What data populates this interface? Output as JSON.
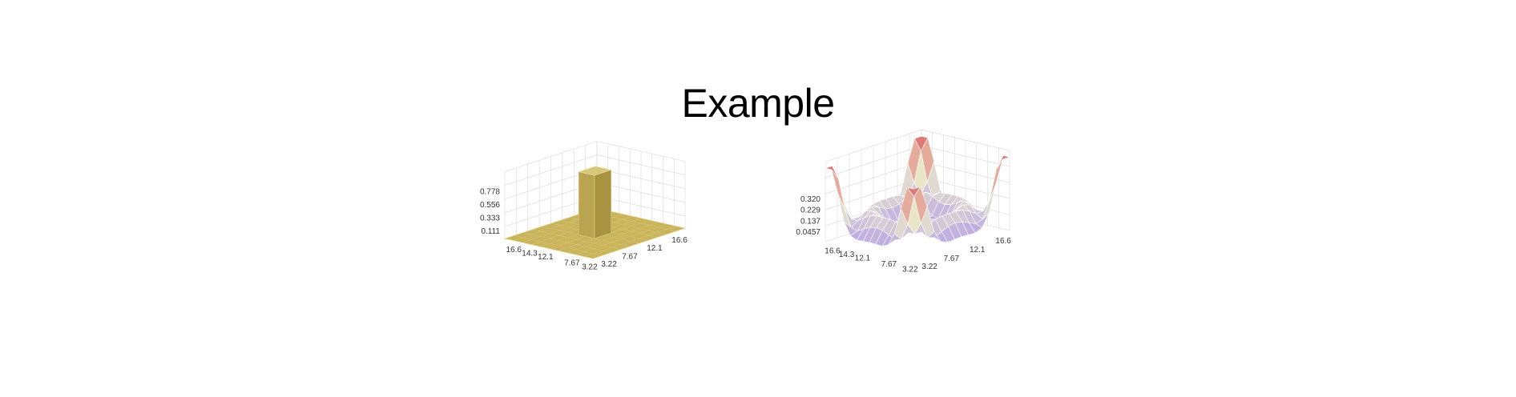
{
  "page": {
    "title": "Example"
  },
  "chart_data": [
    {
      "type": "surface",
      "title": "",
      "xlabel": "",
      "ylabel": "",
      "zlabel": "",
      "x_ticks": [
        "16.6",
        "14.3",
        "12.1",
        "7.67",
        "3.22"
      ],
      "y_ticks": [
        "3.22",
        "7.67",
        "12.1",
        "16.6"
      ],
      "z_ticks": [
        "0.111",
        "0.333",
        "0.556",
        "0.778"
      ],
      "zlim": [
        0,
        0.9
      ],
      "colors": {
        "surface": "#c9b45c",
        "top": "#d8c679",
        "side": "#b9a452",
        "dark": "#a89340"
      },
      "grid": true,
      "description_kind": "step function: flat plane at ~0.02 with a single block of height ~0.85 near the center"
    },
    {
      "type": "surface",
      "title": "",
      "xlabel": "",
      "ylabel": "",
      "zlabel": "",
      "x_ticks": [
        "16.6",
        "14.3",
        "12.1",
        "7.67",
        "3.22"
      ],
      "y_ticks": [
        "3.22",
        "7.67",
        "12.1",
        "16.6"
      ],
      "z_ticks": [
        "0.0457",
        "0.137",
        "0.229",
        "0.320"
      ],
      "zlim": [
        0,
        0.37
      ],
      "colors": {
        "low": "#a88df0",
        "mid": "#e9e7c9",
        "high": "#e07070"
      },
      "grid": true
    }
  ]
}
